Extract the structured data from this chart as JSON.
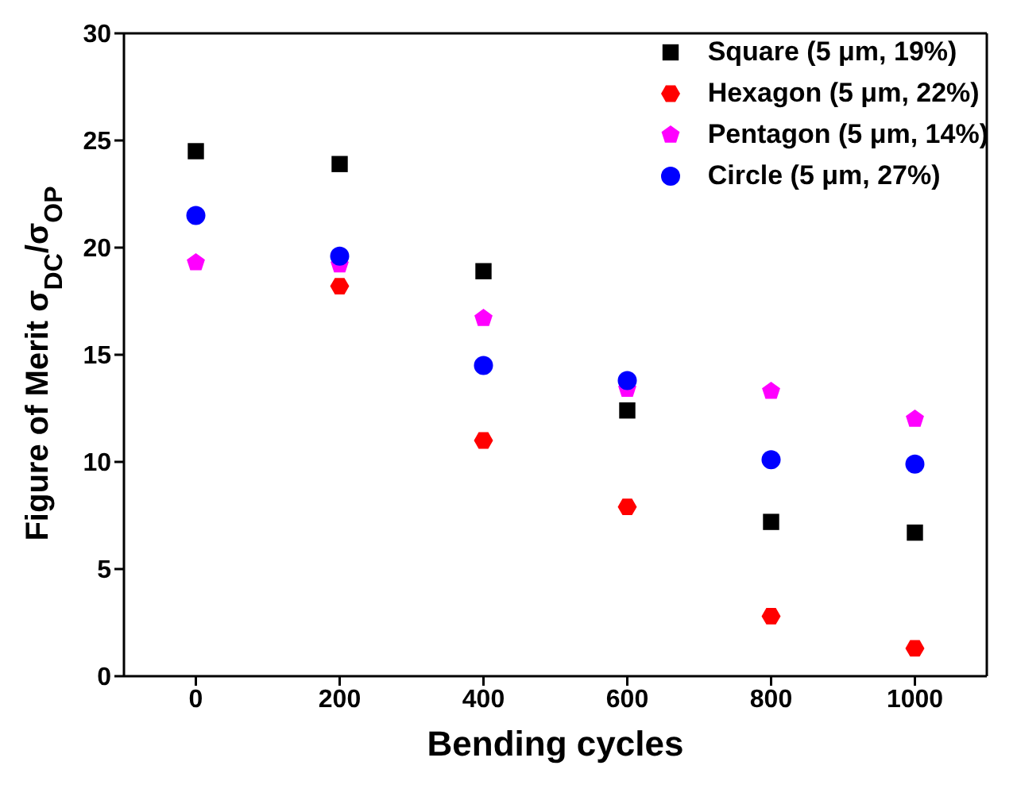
{
  "chart_data": {
    "type": "scatter",
    "xlabel": "Bending cycles",
    "ylabel": "Figure of Merit σ$_{DC}$/σ$_{OP}$",
    "x": [
      0,
      200,
      400,
      600,
      800,
      1000
    ],
    "xlim": [
      -100,
      1100
    ],
    "xticks": [
      0,
      200,
      400,
      600,
      800,
      1000
    ],
    "ylim": [
      0,
      30
    ],
    "yticks": [
      0,
      5,
      10,
      15,
      20,
      25,
      30
    ],
    "grid": false,
    "legend": "top right",
    "series": [
      {
        "name": "Square (5 μm, 19%)",
        "color": "#000000",
        "marker": "square",
        "values": [
          24.5,
          23.9,
          18.9,
          12.4,
          7.2,
          6.7
        ]
      },
      {
        "name": "Hexagon (5 μm, 22%)",
        "color": "#ff0000",
        "values": [
          null,
          18.2,
          11.0,
          7.9,
          2.8,
          1.3
        ]
      },
      {
        "name": "Pentagon (5 μm, 14%)",
        "color": "#ff00ff",
        "values": [
          19.3,
          19.2,
          16.7,
          13.4,
          13.3,
          12.0
        ]
      },
      {
        "name": "Circle (5 μm, 27%)",
        "color": "#0000ff",
        "marker": "circle",
        "values": [
          21.5,
          19.6,
          14.5,
          13.8,
          10.1,
          9.9
        ]
      }
    ]
  }
}
